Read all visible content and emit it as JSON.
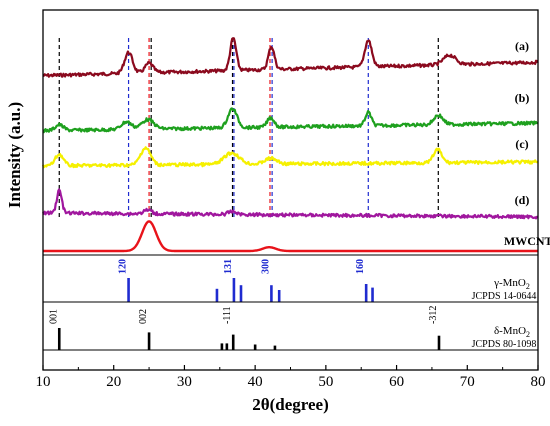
{
  "chart_data": {
    "type": "line",
    "xlabel": "2θ(degree)",
    "ylabel": "Intensity (a.u.)",
    "xlim": [
      10,
      80
    ],
    "x_ticks": [
      10,
      20,
      30,
      40,
      50,
      60,
      70,
      80
    ],
    "grid": false,
    "legend": "none",
    "series": [
      {
        "name": "(a)",
        "color": "#8b0a1e",
        "baseline": 2.3,
        "peaks": [
          {
            "x": 22.1,
            "h": 0.55,
            "w": 0.8
          },
          {
            "x": 25.0,
            "h": 0.25,
            "w": 0.8
          },
          {
            "x": 36.9,
            "h": 0.85,
            "w": 0.6
          },
          {
            "x": 42.3,
            "h": 0.6,
            "w": 0.6
          },
          {
            "x": 56.0,
            "h": 0.7,
            "w": 0.7
          },
          {
            "x": 67.5,
            "h": 0.25,
            "w": 1.2
          }
        ],
        "trend": {
          "start": -0.2,
          "end": 0.15
        }
      },
      {
        "name": "(b)",
        "color": "#1ea01e",
        "baseline": 1.85,
        "peaks": [
          {
            "x": 12.3,
            "h": 0.15,
            "w": 0.8
          },
          {
            "x": 21.8,
            "h": 0.2,
            "w": 1.0
          },
          {
            "x": 24.8,
            "h": 0.25,
            "w": 1.2
          },
          {
            "x": 36.8,
            "h": 0.5,
            "w": 0.9
          },
          {
            "x": 42.2,
            "h": 0.25,
            "w": 0.7
          },
          {
            "x": 56.0,
            "h": 0.35,
            "w": 0.6
          },
          {
            "x": 65.9,
            "h": 0.25,
            "w": 0.9
          }
        ],
        "trend": {
          "start": -0.15,
          "end": 0.05
        }
      },
      {
        "name": "(c)",
        "color": "#f5f000",
        "baseline": 1.35,
        "peaks": [
          {
            "x": 12.3,
            "h": 0.3,
            "w": 0.8
          },
          {
            "x": 24.5,
            "h": 0.45,
            "w": 1.0
          },
          {
            "x": 36.7,
            "h": 0.3,
            "w": 1.5
          },
          {
            "x": 42.2,
            "h": 0.15,
            "w": 1.2
          },
          {
            "x": 65.8,
            "h": 0.35,
            "w": 0.8
          }
        ],
        "trend": {
          "start": -0.1,
          "end": 0.0
        }
      },
      {
        "name": "(d)",
        "color": "#a0179e",
        "baseline": 0.78,
        "peaks": [
          {
            "x": 12.3,
            "h": 0.6,
            "w": 0.5
          },
          {
            "x": 24.8,
            "h": 0.1,
            "w": 0.8
          },
          {
            "x": 36.8,
            "h": 0.08,
            "w": 0.8
          }
        ],
        "trend": {
          "start": 0.0,
          "end": -0.1
        }
      },
      {
        "name": "MWCNTs",
        "color": "#e8131a",
        "baseline": 0.0,
        "peaks": [
          {
            "x": 25.0,
            "h": 0.78,
            "w": 1.4
          },
          {
            "x": 42.0,
            "h": 0.1,
            "w": 1.3
          }
        ],
        "trend": {
          "start": 0.0,
          "end": 0.0
        }
      }
    ],
    "reference_patterns": [
      {
        "name": "γ-MnO2",
        "name_main": "γ-MnO",
        "name_sub": "2",
        "card": "JCPDS 14-0644",
        "color": "#1f2bd0",
        "lines": [
          {
            "x": 22.1,
            "h": 1.0
          },
          {
            "x": 34.6,
            "h": 0.55
          },
          {
            "x": 37.0,
            "h": 1.0
          },
          {
            "x": 38.0,
            "h": 0.7
          },
          {
            "x": 42.3,
            "h": 0.7
          },
          {
            "x": 43.4,
            "h": 0.5
          },
          {
            "x": 55.7,
            "h": 0.75
          },
          {
            "x": 56.6,
            "h": 0.6
          }
        ],
        "hkl": [
          {
            "label": "120",
            "x": 22.1
          },
          {
            "label": "131",
            "x": 37.0
          },
          {
            "label": "300",
            "x": 42.3
          },
          {
            "label": "160",
            "x": 55.7
          }
        ]
      },
      {
        "name": "δ-MnO2",
        "name_main": "δ-MnO",
        "name_sub": "2",
        "card": "JCPDS 80-1098",
        "color": "#000000",
        "lines": [
          {
            "x": 12.3,
            "h": 1.0
          },
          {
            "x": 25.0,
            "h": 0.8
          },
          {
            "x": 35.3,
            "h": 0.3
          },
          {
            "x": 36.0,
            "h": 0.3
          },
          {
            "x": 36.9,
            "h": 0.7
          },
          {
            "x": 40.0,
            "h": 0.25
          },
          {
            "x": 42.8,
            "h": 0.2
          },
          {
            "x": 66.0,
            "h": 0.65
          }
        ],
        "hkl": [
          {
            "label": "001",
            "x": 12.3
          },
          {
            "label": "002",
            "x": 25.0
          },
          {
            "label": "-111",
            "x": 36.9
          },
          {
            "label": "-312",
            "x": 66.0
          }
        ]
      }
    ],
    "guide_lines": [
      {
        "x": 12.3,
        "color": "#000000"
      },
      {
        "x": 22.1,
        "color": "#1f2bd0"
      },
      {
        "x": 25.0,
        "color": "#e8131a"
      },
      {
        "x": 25.3,
        "color": "#000000"
      },
      {
        "x": 37.0,
        "color": "#1f2bd0"
      },
      {
        "x": 36.8,
        "color": "#000000"
      },
      {
        "x": 42.1,
        "color": "#e8131a"
      },
      {
        "x": 42.4,
        "color": "#1f2bd0"
      },
      {
        "x": 56.0,
        "color": "#1f2bd0"
      },
      {
        "x": 65.9,
        "color": "#000000"
      }
    ]
  }
}
